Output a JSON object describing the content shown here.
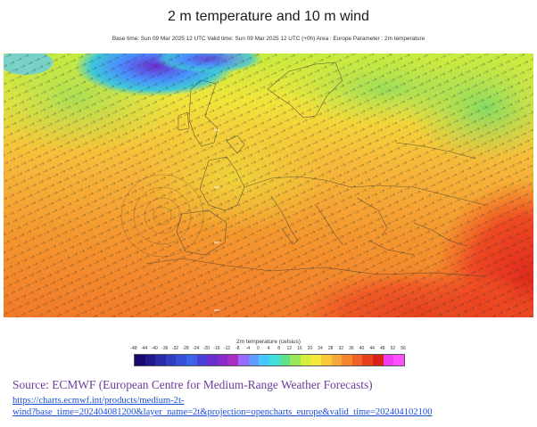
{
  "title": "2 m temperature and 10 m wind",
  "subtitle": "Base time: Sun 09 Mar 2025 12 UTC Valid time: Sun 09 Mar 2025 12 UTC (+0h) Area : Europe Parameter : 2m temperature",
  "legend": {
    "title": "2m temperature (celsius)",
    "ticks": [
      "-48",
      "-44",
      "-40",
      "-36",
      "-32",
      "-28",
      "-24",
      "-20",
      "-16",
      "-12",
      "-8",
      "-4",
      "0",
      "4",
      "8",
      "12",
      "16",
      "20",
      "24",
      "28",
      "32",
      "36",
      "40",
      "44",
      "48",
      "52",
      "56"
    ],
    "colors": [
      "#1a0a6e",
      "#221a8c",
      "#2a2aa8",
      "#2f3fc0",
      "#3550d6",
      "#3b64e6",
      "#4a3fd8",
      "#6a2fd0",
      "#8a2ac8",
      "#a82ec0",
      "#9a6aff",
      "#5f9dff",
      "#46c8ff",
      "#44e0d8",
      "#5fe08c",
      "#9ae65a",
      "#d4ee3a",
      "#f6e83a",
      "#f8c83a",
      "#f6a83a",
      "#f4862e",
      "#f06226",
      "#e8401e",
      "#d82218",
      "#f03cf0",
      "#ff50ff"
    ]
  },
  "source": {
    "text": "Source: ECMWF (European Centre for Medium-Range Weather Forecasts)",
    "url_line1": "https://charts.ecmwf.int/products/medium-2t-",
    "url_line2": "wind?base_time=202404081200&layer_name=2t&projection=opencharts_europe&valid_time=202404102100"
  }
}
